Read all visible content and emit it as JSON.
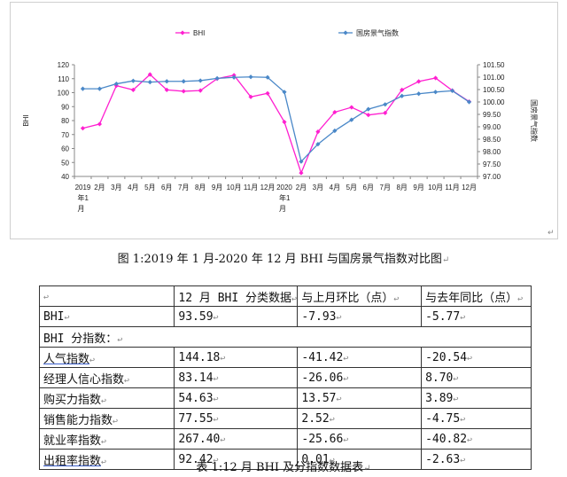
{
  "figure_caption": "图 1:2019 年 1 月-2020 年 12 月 BHI 与国房景气指数对比图",
  "table_caption": "表 1:12 月 BHI 及分指数数据表",
  "table": {
    "headers": [
      "",
      "12 月 BHI 分类数据",
      "与上月环比（点）",
      "与去年同比（点）"
    ],
    "rows": [
      {
        "label": "BHI",
        "v1": "93.59",
        "v2": "-7.93",
        "v3": "-5.77"
      },
      {
        "label": "BHI 分指数：",
        "span": true
      },
      {
        "label": "人气指数",
        "v1": "144.18",
        "v2": "-41.42",
        "v3": "-20.54"
      },
      {
        "label": "经理人信心指数",
        "v1": "83.14",
        "v2": "-26.06",
        "v3": "8.70"
      },
      {
        "label": "购买力指数",
        "v1": "54.63",
        "v2": "13.57",
        "v3": "3.89"
      },
      {
        "label": "销售能力指数",
        "v1": "77.55",
        "v2": "2.52",
        "v3": "-4.75"
      },
      {
        "label": "就业率指数",
        "v1": "267.40",
        "v2": "-25.66",
        "v3": "-40.82"
      },
      {
        "label": "出租率指数",
        "v1": "92.42",
        "v2": "0.01",
        "v3": "-2.63"
      }
    ]
  },
  "chart_data": {
    "type": "line",
    "x": [
      "2019年1月",
      "2月",
      "3月",
      "4月",
      "5月",
      "6月",
      "7月",
      "8月",
      "9月",
      "10月",
      "11月",
      "12月",
      "2020年1月",
      "2月",
      "3月",
      "4月",
      "5月",
      "6月",
      "7月",
      "8月",
      "9月",
      "10月",
      "11月",
      "12月"
    ],
    "x_tick_labels": [
      "2019",
      "2月",
      "3月",
      "4月",
      "5月",
      "6月",
      "7月",
      "8月",
      "9月",
      "10月",
      "11月",
      "12月",
      "2020",
      "2月",
      "3月",
      "4月",
      "5月",
      "6月",
      "7月",
      "8月",
      "9月",
      "10月",
      "11月",
      "12月"
    ],
    "x_tick_sublabels": [
      {
        "index": 0,
        "lines": [
          "年1",
          "月"
        ]
      },
      {
        "index": 12,
        "lines": [
          "年1",
          "月"
        ]
      }
    ],
    "y_left": {
      "label": "BHI",
      "ylim": [
        40,
        120
      ],
      "ticks": [
        40,
        50,
        60,
        70,
        80,
        90,
        100,
        110,
        120
      ]
    },
    "y_right": {
      "label": "国房景气指数",
      "ylim": [
        97.0,
        101.5
      ],
      "ticks": [
        "97.00",
        "97.50",
        "98.00",
        "98.50",
        "99.00",
        "99.50",
        "100.00",
        "100.50",
        "101.00",
        "101.50"
      ]
    },
    "series": [
      {
        "name": "BHI",
        "axis": "left",
        "color": "#ff1fd0",
        "marker": "diamond",
        "values": [
          74.5,
          77.5,
          105,
          102,
          113,
          102,
          101,
          101.5,
          110,
          112.5,
          97,
          99.5,
          79,
          42.5,
          72,
          86,
          89.5,
          84,
          85.5,
          102,
          108,
          110.5,
          101.5,
          93.59
        ]
      },
      {
        "name": "国房景气指数",
        "axis": "right",
        "color": "#4a88c8",
        "marker": "diamond",
        "values": [
          100.53,
          100.53,
          100.73,
          100.85,
          100.8,
          100.83,
          100.83,
          100.86,
          100.95,
          100.99,
          101.01,
          100.99,
          100.4,
          97.6,
          98.3,
          98.84,
          99.28,
          99.71,
          99.9,
          100.24,
          100.33,
          100.4,
          100.45,
          100.0
        ]
      }
    ],
    "legend_position": "top-center",
    "grid": false
  }
}
